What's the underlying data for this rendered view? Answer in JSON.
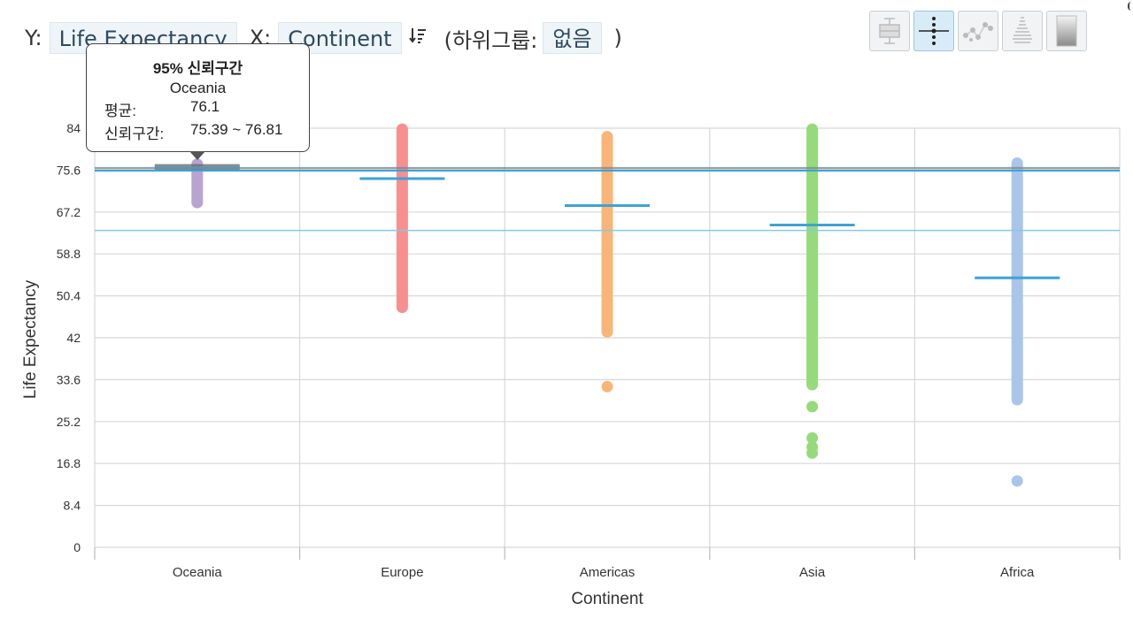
{
  "header": {
    "y_prefix": "Y:",
    "y_field": "Life Expectancy",
    "x_prefix": "X:",
    "x_field": "Continent",
    "subgroup_prefix": "(하위그룹:",
    "subgroup_value": "없음",
    "subgroup_suffix": ")"
  },
  "mode_buttons": [
    {
      "name": "boxplot-mode-icon",
      "active": false
    },
    {
      "name": "dot-ci-mode-icon",
      "active": true
    },
    {
      "name": "scatter-connect-mode-icon",
      "active": false
    },
    {
      "name": "violin-mode-icon",
      "active": false
    },
    {
      "name": "gradient-mode-icon",
      "active": false
    }
  ],
  "tooltip": {
    "title": "95% 신뢰구간",
    "group": "Oceania",
    "mean_label": "평균:",
    "mean_value": "76.1",
    "ci_label": "신뢰구간:",
    "ci_value": "75.39 ~ 76.81"
  },
  "chart_data": {
    "type": "scatter",
    "xlabel": "Continent",
    "ylabel": "Life Expectancy",
    "ylim": [
      0,
      84
    ],
    "yticks": [
      "0",
      "8.4",
      "16.8",
      "25.2",
      "33.6",
      "42",
      "50.4",
      "58.8",
      "67.2",
      "75.6",
      "84"
    ],
    "categories": [
      "Oceania",
      "Europe",
      "Americas",
      "Asia",
      "Africa"
    ],
    "colors": {
      "Oceania": "#b9a3d0",
      "Europe": "#f88f8f",
      "Americas": "#f9b577",
      "Asia": "#95da7b",
      "Africa": "#a9c5ea",
      "mean_line": "#3ca3d6",
      "grand_mean_line": "#86c8ea"
    },
    "groups": [
      {
        "name": "Oceania",
        "min": 69.1,
        "max": 76.8,
        "outliers": [],
        "mean": 76.1,
        "ci": [
          75.39,
          76.81
        ]
      },
      {
        "name": "Europe",
        "min": 48.1,
        "max": 83.8,
        "outliers": [],
        "mean": 73.9
      },
      {
        "name": "Americas",
        "min": 43.2,
        "max": 82.3,
        "outliers": [
          32.2
        ],
        "mean": 68.5
      },
      {
        "name": "Asia",
        "min": 32.6,
        "max": 83.8,
        "outliers": [
          28.2,
          21.9,
          20.1,
          18.9
        ],
        "mean": 64.6
      },
      {
        "name": "Africa",
        "min": 29.6,
        "max": 77.0,
        "outliers": [
          13.3
        ],
        "mean": 54.0
      }
    ],
    "reference_lines": [
      76.0,
      75.5,
      63.5
    ],
    "grid": true,
    "legend": "none"
  }
}
